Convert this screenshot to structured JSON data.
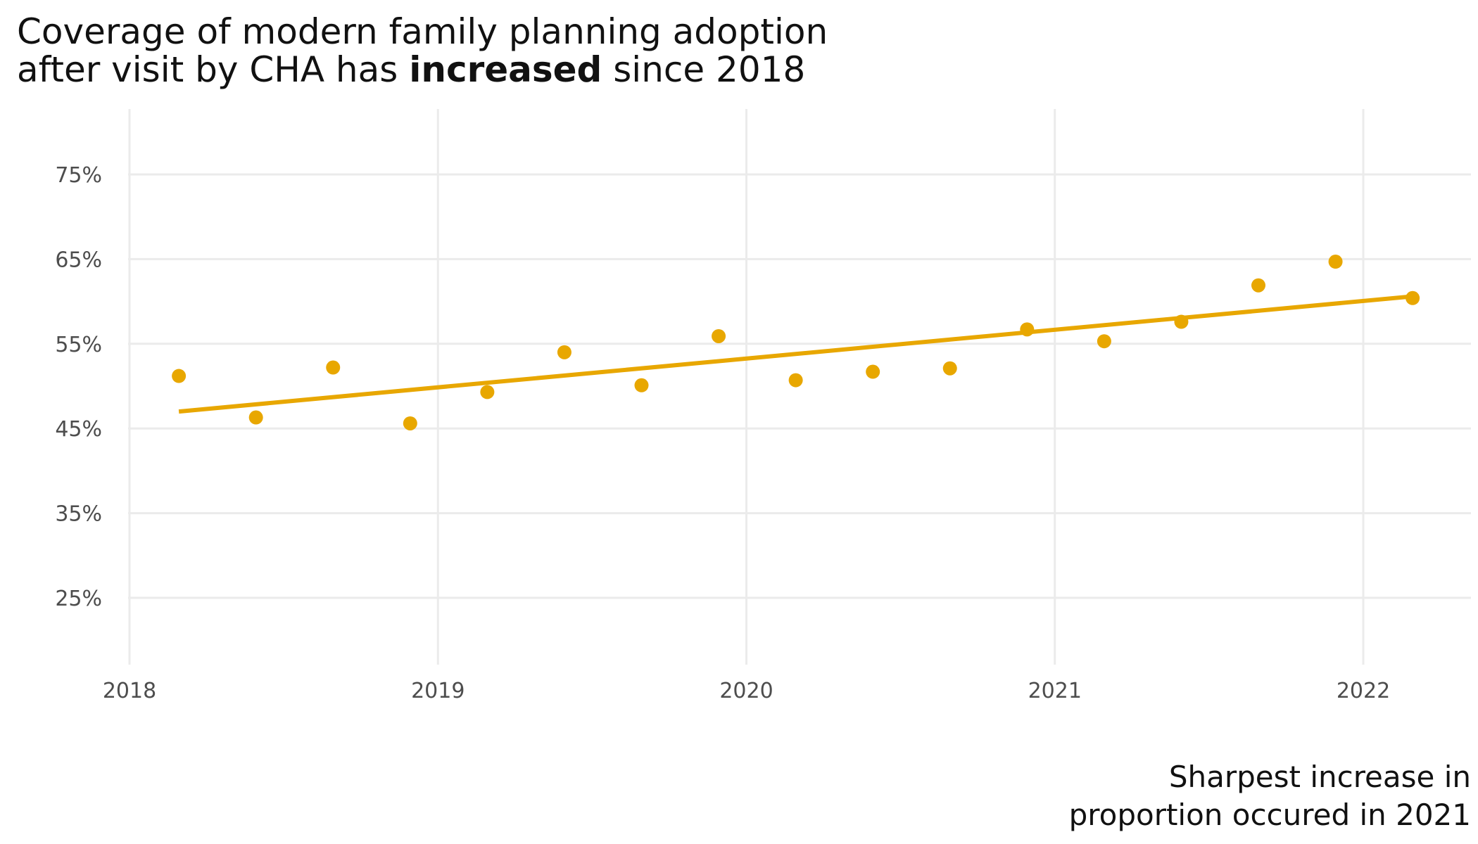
{
  "chart_data": {
    "type": "scatter",
    "title": {
      "line1": "Coverage of modern family planning adoption",
      "line2_pre": "after visit by CHA has ",
      "line2_bold": "increased",
      "line2_post": " since 2018"
    },
    "caption": {
      "line1": "Sharpest increase in",
      "line2": "proportion occured in 2021"
    },
    "xlabel": "",
    "ylabel": "",
    "xlim": [
      2018,
      2022.35
    ],
    "ylim": [
      0.19,
      0.82
    ],
    "x_ticks": [
      2018,
      2019,
      2020,
      2021,
      2022
    ],
    "x_tick_labels": [
      "2018",
      "2019",
      "2020",
      "2021",
      "2022"
    ],
    "y_ticks": [
      0.25,
      0.35,
      0.45,
      0.55,
      0.65,
      0.75
    ],
    "y_tick_labels": [
      "25%",
      "35%",
      "45%",
      "55%",
      "65%",
      "75%"
    ],
    "grid": true,
    "legend": "none",
    "color": "#E8A700",
    "points": [
      {
        "x": 2018.16,
        "y": 0.512
      },
      {
        "x": 2018.41,
        "y": 0.463
      },
      {
        "x": 2018.66,
        "y": 0.522
      },
      {
        "x": 2018.91,
        "y": 0.456
      },
      {
        "x": 2019.16,
        "y": 0.493
      },
      {
        "x": 2019.41,
        "y": 0.54
      },
      {
        "x": 2019.66,
        "y": 0.501
      },
      {
        "x": 2019.91,
        "y": 0.559
      },
      {
        "x": 2020.16,
        "y": 0.507
      },
      {
        "x": 2020.41,
        "y": 0.517
      },
      {
        "x": 2020.66,
        "y": 0.521
      },
      {
        "x": 2020.91,
        "y": 0.567
      },
      {
        "x": 2021.16,
        "y": 0.553
      },
      {
        "x": 2021.41,
        "y": 0.576
      },
      {
        "x": 2021.66,
        "y": 0.619
      },
      {
        "x": 2021.91,
        "y": 0.647
      },
      {
        "x": 2022.16,
        "y": 0.604
      }
    ],
    "trend_line": [
      {
        "x": 2018.16,
        "y": 0.47
      },
      {
        "x": 2022.16,
        "y": 0.606
      }
    ]
  }
}
